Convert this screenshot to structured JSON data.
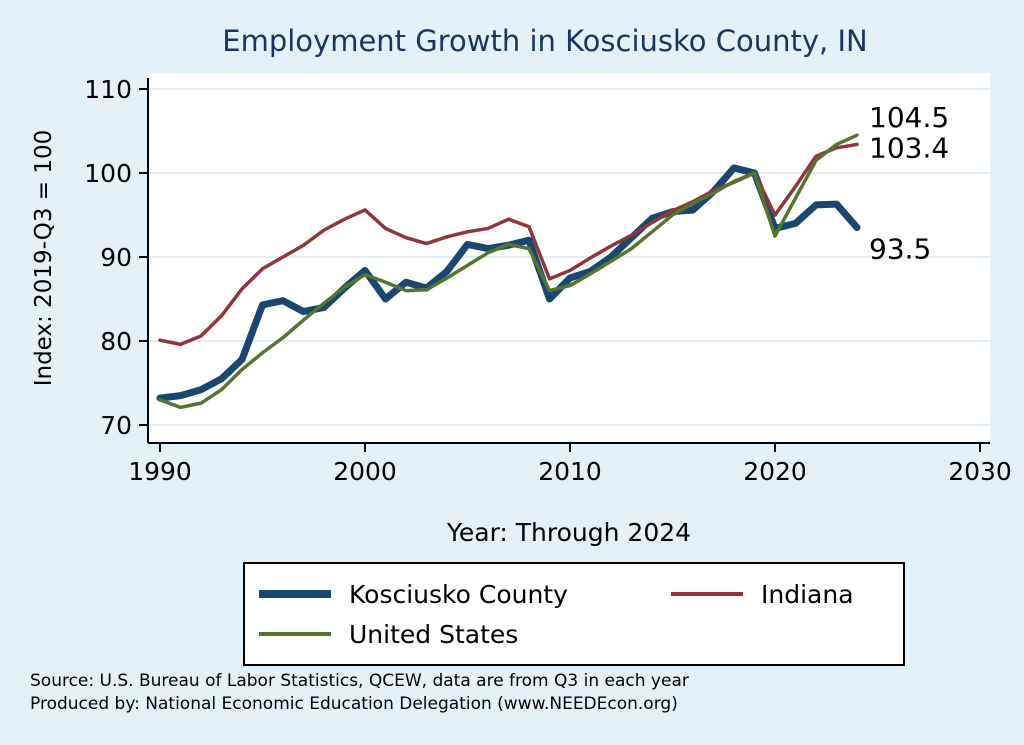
{
  "page": {
    "title": "Employment Growth in Kosciusko County, IN"
  },
  "axis": {
    "y_label": "Index: 2019-Q3 = 100",
    "x_label": "Year: Through 2024"
  },
  "footer": {
    "source": "Source: U.S. Bureau of Labor Statistics, QCEW, data are from Q3 in each year",
    "produced_by": "Produced by: National Economic Education Delegation (www.NEEDEcon.org)"
  },
  "colors": {
    "background": "#e4f1f8",
    "title": "#17365d",
    "gridline": "#d9e9f3",
    "axis": "#000000"
  },
  "chart_data": {
    "type": "line",
    "title": "Employment Growth in Kosciusko County, IN",
    "xlabel": "Year: Through 2024",
    "ylabel": "Index: 2019-Q3 = 100",
    "xlim": [
      1990,
      2030
    ],
    "ylim": [
      70,
      110
    ],
    "xticks": [
      1990,
      2000,
      2010,
      2020,
      2030
    ],
    "yticks": [
      70,
      80,
      90,
      100,
      110
    ],
    "grid": "horizontal",
    "legend_position": "below",
    "years": [
      1990,
      1991,
      1992,
      1993,
      1994,
      1995,
      1996,
      1997,
      1998,
      1999,
      2000,
      2001,
      2002,
      2003,
      2004,
      2005,
      2006,
      2007,
      2008,
      2009,
      2010,
      2011,
      2012,
      2013,
      2014,
      2015,
      2016,
      2017,
      2018,
      2019,
      2020,
      2021,
      2022,
      2023,
      2024
    ],
    "series": [
      {
        "id": "kosciusko-county",
        "name": "Kosciusko  County",
        "color": "#1a476f",
        "line_width": 7,
        "legend_swatch_height": 8,
        "end_label": "93.5",
        "end_label_dy": 31,
        "values": [
          73.2,
          73.5,
          74.2,
          75.5,
          77.8,
          84.3,
          84.8,
          83.5,
          84.0,
          86.3,
          88.4,
          85.0,
          87.0,
          86.3,
          88.3,
          91.5,
          91.0,
          91.4,
          92.0,
          85.0,
          87.5,
          88.3,
          90.0,
          92.3,
          94.6,
          95.4,
          95.6,
          97.8,
          100.6,
          100.0,
          93.4,
          94.0,
          96.2,
          96.3,
          93.5
        ]
      },
      {
        "id": "indiana",
        "name": "Indiana",
        "color": "#90353b",
        "line_width": 3.5,
        "legend_swatch_height": 4,
        "end_label": "103.4",
        "end_label_dy": 13,
        "values": [
          80.1,
          79.6,
          80.6,
          83.0,
          86.2,
          88.6,
          90.0,
          91.4,
          93.2,
          94.5,
          95.6,
          93.4,
          92.3,
          91.6,
          92.4,
          93.0,
          93.4,
          94.5,
          93.6,
          87.4,
          88.4,
          89.9,
          91.3,
          92.6,
          94.1,
          95.5,
          96.6,
          97.9,
          98.9,
          100.0,
          95.0,
          98.4,
          102.0,
          103.0,
          103.4
        ]
      },
      {
        "id": "united-states",
        "name": "United States",
        "color": "#55752f",
        "line_width": 3.5,
        "legend_swatch_height": 4,
        "end_label": "104.5",
        "end_label_dy": -8,
        "values": [
          73.0,
          72.1,
          72.6,
          74.2,
          76.6,
          78.6,
          80.4,
          82.5,
          84.5,
          86.4,
          87.9,
          87.0,
          86.0,
          86.1,
          87.5,
          89.0,
          90.5,
          91.5,
          91.0,
          86.0,
          86.6,
          88.0,
          89.5,
          91.0,
          93.0,
          95.0,
          96.4,
          97.6,
          99.0,
          100.0,
          92.5,
          97.0,
          101.5,
          103.4,
          104.5
        ]
      }
    ]
  }
}
